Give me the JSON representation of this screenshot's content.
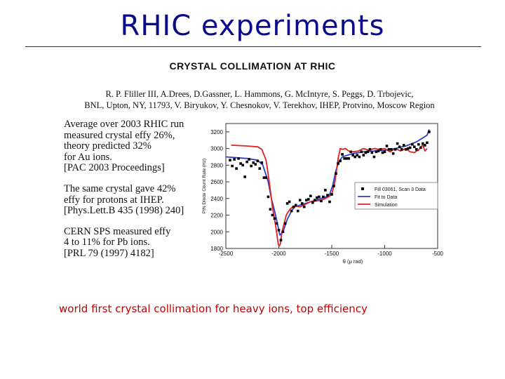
{
  "slide": {
    "title": "RHIC experiments",
    "paper_title": "CRYSTAL COLLIMATION AT RHIC",
    "authors_line1": "R. P. Fliller III, A.Drees, D.Gassner, L. Hammons, G. McIntyre, S. Peggs, D. Trbojevic,",
    "authors_line2": "BNL, Upton, NY, 11793, V. Biryukov, Y. Chesnokov, V. Terekhov, IHEP, Protvino, Moscow Region",
    "footer": "world first crystal collimation for heavy ions, top efficiency"
  },
  "notes": [
    [
      "Average over 2003 RHIC run",
      "measured crystal effy 26%,",
      "theory predicted 32%",
      "for Au ions.",
      "[PAC 2003 Proceedings]"
    ],
    [
      "The same crystal gave 42%",
      "effy for protons at IHEP.",
      "[Phys.Lett.B 435 (1998) 240]"
    ],
    [
      "CERN SPS measured effy",
      "4 to 11% for Pb ions.",
      "[PRL 79 (1997) 4182]"
    ]
  ],
  "chart_data": {
    "type": "line",
    "xlabel": "θ (μ rad)",
    "ylabel": "PIN Diode Count Rate (Hz)",
    "xlim": [
      -2500,
      -500
    ],
    "ylim": [
      1800,
      3300
    ],
    "xticks": [
      -2500,
      -2000,
      -1500,
      -1000,
      -500
    ],
    "yticks": [
      1800,
      2000,
      2200,
      2400,
      2600,
      2800,
      3000,
      3200
    ],
    "legend_position": "right",
    "series": [
      {
        "name": "Fill 03061, Scan 3 Data",
        "color": "#000000",
        "style": "markers",
        "x": [
          -2460,
          -2440,
          -2420,
          -2400,
          -2380,
          -2360,
          -2340,
          -2320,
          -2300,
          -2280,
          -2260,
          -2240,
          -2220,
          -2200,
          -2180,
          -2160,
          -2140,
          -2120,
          -2100,
          -2080,
          -2060,
          -2040,
          -2020,
          -2000,
          -1980,
          -1960,
          -1940,
          -1920,
          -1900,
          -1880,
          -1860,
          -1840,
          -1820,
          -1800,
          -1780,
          -1760,
          -1740,
          -1720,
          -1700,
          -1680,
          -1660,
          -1640,
          -1620,
          -1600,
          -1580,
          -1560,
          -1540,
          -1520,
          -1500,
          -1480,
          -1460,
          -1440,
          -1420,
          -1400,
          -1380,
          -1360,
          -1340,
          -1320,
          -1300,
          -1280,
          -1260,
          -1240,
          -1220,
          -1200,
          -1180,
          -1160,
          -1140,
          -1120,
          -1100,
          -1080,
          -1060,
          -1040,
          -1020,
          -1000,
          -980,
          -960,
          -940,
          -920,
          -900,
          -880,
          -860,
          -840,
          -820,
          -800,
          -780,
          -760,
          -740,
          -720,
          -700,
          -680,
          -660,
          -640,
          -620,
          -600,
          -580
        ],
        "y": [
          2860,
          2790,
          2870,
          2760,
          2880,
          2820,
          2800,
          2660,
          2840,
          2870,
          2790,
          2830,
          2810,
          2850,
          2760,
          2830,
          2650,
          2650,
          2420,
          2270,
          2200,
          2160,
          2100,
          2020,
          1900,
          2000,
          2100,
          2340,
          2360,
          2250,
          2300,
          2320,
          2250,
          2380,
          2340,
          2300,
          2380,
          2390,
          2430,
          2350,
          2380,
          2410,
          2420,
          2370,
          2420,
          2500,
          2440,
          2360,
          2450,
          2550,
          2700,
          2820,
          2850,
          2930,
          2880,
          2880,
          2880,
          2960,
          2920,
          2900,
          2920,
          2900,
          2960,
          2920,
          2950,
          2960,
          2990,
          2950,
          2900,
          2960,
          2970,
          2990,
          2950,
          2960,
          3030,
          2990,
          2990,
          2940,
          2990,
          3060,
          3020,
          2990,
          3040,
          2990,
          3000,
          3010,
          3050,
          3020,
          2990,
          3050,
          3010,
          3060,
          3040,
          3070,
          3200
        ]
      },
      {
        "name": "Fit to Data",
        "color": "#2a3fd0",
        "style": "line",
        "x": [
          -2500,
          -2300,
          -2200,
          -2150,
          -2100,
          -2070,
          -2040,
          -2010,
          -1990,
          -1960,
          -1920,
          -1880,
          -1850,
          -1800,
          -1750,
          -1700,
          -1650,
          -1600,
          -1550,
          -1520,
          -1490,
          -1460,
          -1430,
          -1400,
          -1350,
          -1300,
          -1200,
          -1100,
          -1000,
          -900,
          -800,
          -700,
          -600,
          -580
        ],
        "y": [
          2900,
          2880,
          2860,
          2800,
          2600,
          2400,
          2250,
          2080,
          1960,
          2000,
          2150,
          2250,
          2300,
          2320,
          2340,
          2360,
          2380,
          2400,
          2420,
          2450,
          2560,
          2740,
          2850,
          2900,
          2920,
          2940,
          2960,
          2970,
          2980,
          3000,
          3030,
          3080,
          3160,
          3230
        ]
      },
      {
        "name": "Simulation",
        "color": "#e0221f",
        "style": "line",
        "x": [
          -2450,
          -2300,
          -2200,
          -2160,
          -2120,
          -2090,
          -2060,
          -2040,
          -2020,
          -2005,
          -1995,
          -1985,
          -1970,
          -1950,
          -1930,
          -1900,
          -1870,
          -1840,
          -1800,
          -1750,
          -1700,
          -1650,
          -1600,
          -1560,
          -1530,
          -1500,
          -1470,
          -1440,
          -1420,
          -1400,
          -1370,
          -1340,
          -1300,
          -1250,
          -1200,
          -1150,
          -1100,
          -1050,
          -1000,
          -950,
          -900,
          -850,
          -800,
          -760,
          -720,
          -700,
          -680,
          -660,
          -640,
          -620,
          -600
        ],
        "y": [
          3040,
          3030,
          3020,
          2990,
          2860,
          2600,
          2300,
          2150,
          1990,
          1850,
          1830,
          1860,
          2000,
          2100,
          2200,
          2260,
          2300,
          2310,
          2300,
          2330,
          2360,
          2370,
          2380,
          2400,
          2420,
          2450,
          2600,
          2880,
          3000,
          2990,
          3000,
          2970,
          2960,
          2970,
          3000,
          2980,
          3000,
          2990,
          3000,
          2960,
          3000,
          2970,
          3000,
          2960,
          2950,
          2970,
          2980,
          3020,
          3040,
          2970,
          3000
        ]
      }
    ]
  }
}
